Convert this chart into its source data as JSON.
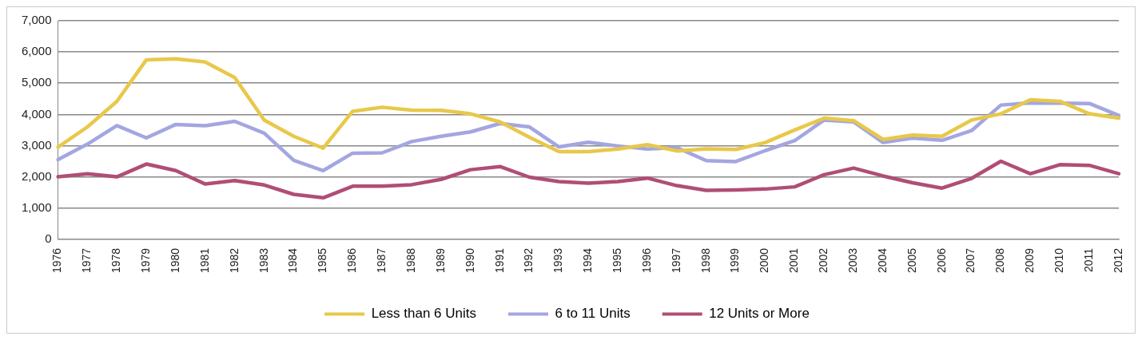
{
  "chart_data": {
    "type": "line",
    "categories": [
      "1976",
      "1977",
      "1978",
      "1979",
      "1980",
      "1981",
      "1982",
      "1983",
      "1984",
      "1985",
      "1986",
      "1987",
      "1988",
      "1989",
      "1990",
      "1991",
      "1992",
      "1993",
      "1994",
      "1995",
      "1996",
      "1997",
      "1998",
      "1999",
      "2000",
      "2001",
      "2002",
      "2003",
      "2004",
      "2005",
      "2006",
      "2007",
      "2008",
      "2009",
      "2010",
      "2011",
      "2012"
    ],
    "series": [
      {
        "name": "Less than 6 Units",
        "color": "#e8c84a",
        "values": [
          2950,
          3600,
          4420,
          5750,
          5780,
          5680,
          5180,
          3820,
          3300,
          2920,
          4100,
          4230,
          4140,
          4130,
          4020,
          3760,
          3270,
          2810,
          2810,
          2890,
          3030,
          2830,
          2900,
          2880,
          3100,
          3500,
          3880,
          3800,
          3200,
          3340,
          3300,
          3820,
          4020,
          4470,
          4420,
          4020,
          3880
        ]
      },
      {
        "name": "6 to 11 Units",
        "color": "#a3a6e0",
        "values": [
          2550,
          3050,
          3640,
          3250,
          3680,
          3640,
          3780,
          3400,
          2530,
          2200,
          2760,
          2770,
          3130,
          3300,
          3440,
          3710,
          3600,
          2960,
          3110,
          2990,
          2890,
          2940,
          2520,
          2490,
          2840,
          3160,
          3820,
          3760,
          3100,
          3240,
          3170,
          3480,
          4300,
          4370,
          4360,
          4350,
          3970
        ]
      },
      {
        "name": "12 Units or More",
        "color": "#b04e75",
        "values": [
          2000,
          2100,
          2000,
          2410,
          2200,
          1770,
          1880,
          1740,
          1440,
          1330,
          1700,
          1700,
          1750,
          1920,
          2230,
          2330,
          1990,
          1850,
          1800,
          1850,
          1960,
          1720,
          1570,
          1580,
          1610,
          1680,
          2070,
          2280,
          2030,
          1810,
          1640,
          1950,
          2500,
          2100,
          2390,
          2370,
          2100
        ]
      }
    ],
    "ylim": [
      0,
      7000
    ],
    "yticks": [
      0,
      {
        "value": 1000,
        "label": "1,000"
      },
      {
        "value": 2000,
        "label": "2,000"
      },
      {
        "value": 3000,
        "label": "3,000"
      },
      {
        "value": 4000,
        "label": "4,000"
      },
      {
        "value": 5000,
        "label": "5,000"
      },
      {
        "value": 6000,
        "label": "6,000"
      },
      {
        "value": 7000,
        "label": "7,000"
      }
    ],
    "grid": "y",
    "legend": "bottom",
    "marker": "none",
    "line_style": "solid"
  }
}
